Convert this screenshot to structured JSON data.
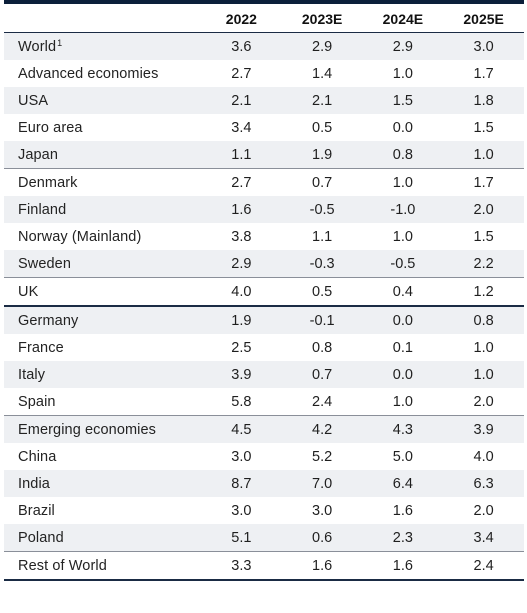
{
  "table": {
    "headers": [
      "",
      "2022",
      "2023E",
      "2024E",
      "2025E"
    ],
    "rows": [
      {
        "label": "World",
        "sup": "1",
        "values": [
          "3.6",
          "2.9",
          "2.9",
          "3.0"
        ]
      },
      {
        "label": "Advanced economies",
        "values": [
          "2.7",
          "1.4",
          "1.0",
          "1.7"
        ]
      },
      {
        "label": "USA",
        "values": [
          "2.1",
          "2.1",
          "1.5",
          "1.8"
        ]
      },
      {
        "label": "Euro area",
        "values": [
          "3.4",
          "0.5",
          "0.0",
          "1.5"
        ]
      },
      {
        "label": "Japan",
        "values": [
          "1.1",
          "1.9",
          "0.8",
          "1.0"
        ]
      },
      {
        "label": "Denmark",
        "values": [
          "2.7",
          "0.7",
          "1.0",
          "1.7"
        ]
      },
      {
        "label": "Finland",
        "values": [
          "1.6",
          "-0.5",
          "-1.0",
          "2.0"
        ]
      },
      {
        "label": "Norway (Mainland)",
        "values": [
          "3.8",
          "1.1",
          "1.0",
          "1.5"
        ]
      },
      {
        "label": "Sweden",
        "values": [
          "2.9",
          "-0.3",
          "-0.5",
          "2.2"
        ]
      },
      {
        "label": "UK",
        "values": [
          "4.0",
          "0.5",
          "0.4",
          "1.2"
        ]
      },
      {
        "label": "Germany",
        "values": [
          "1.9",
          "-0.1",
          "0.0",
          "0.8"
        ]
      },
      {
        "label": "France",
        "values": [
          "2.5",
          "0.8",
          "0.1",
          "1.0"
        ]
      },
      {
        "label": "Italy",
        "values": [
          "3.9",
          "0.7",
          "0.0",
          "1.0"
        ]
      },
      {
        "label": "Spain",
        "values": [
          "5.8",
          "2.4",
          "1.0",
          "2.0"
        ]
      },
      {
        "label": "Emerging economies",
        "values": [
          "4.5",
          "4.2",
          "4.3",
          "3.9"
        ]
      },
      {
        "label": "China",
        "values": [
          "3.0",
          "5.2",
          "5.0",
          "4.0"
        ]
      },
      {
        "label": "India",
        "values": [
          "8.7",
          "7.0",
          "6.4",
          "6.3"
        ]
      },
      {
        "label": "Brazil",
        "values": [
          "3.0",
          "3.0",
          "1.6",
          "2.0"
        ]
      },
      {
        "label": "Poland",
        "values": [
          "5.1",
          "0.6",
          "2.3",
          "3.4"
        ]
      },
      {
        "label": "Rest of World",
        "values": [
          "3.3",
          "1.6",
          "1.6",
          "2.4"
        ]
      }
    ]
  },
  "colors": {
    "rule": "#1a2b44",
    "shade": "#eef0f3"
  }
}
